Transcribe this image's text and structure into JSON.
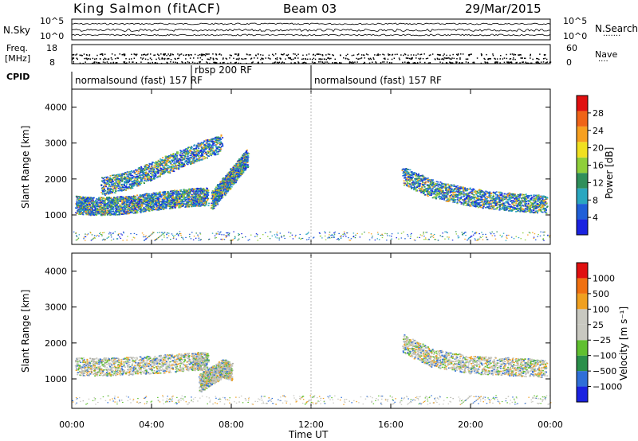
{
  "header": {
    "station": "King Salmon (fitACF)",
    "beam": "Beam 03",
    "date": "29/Mar/2015"
  },
  "noise_panel": {
    "left_label": "N.Sky",
    "right_label": "N.Search",
    "right_marker": "·······",
    "left_ticks": [
      "10^5",
      "10^0"
    ],
    "right_ticks": [
      "10^5",
      "10^0"
    ]
  },
  "freq_panel": {
    "left_label_1": "Freq.",
    "left_label_2": "[MHz]",
    "right_label": "Nave",
    "right_marker": "····",
    "left_ticks": [
      "18",
      "8"
    ],
    "right_ticks": [
      "60",
      "0"
    ]
  },
  "cpid": {
    "label": "CPID",
    "segments": [
      {
        "text": "normalsound (fast) 157 RF",
        "start_hour": 0.0
      },
      {
        "text": "rbsp 200 RF",
        "start_hour": 6.0
      },
      {
        "text": "normalsound (fast) 157 RF",
        "start_hour": 12.0
      }
    ]
  },
  "time_axis": {
    "label": "Time UT",
    "tick_labels": [
      "00:00",
      "04:00",
      "08:00",
      "12:00",
      "16:00",
      "20:00",
      "00:00"
    ],
    "tick_hours": [
      0,
      4,
      8,
      12,
      16,
      20,
      24
    ]
  },
  "chart_data": [
    {
      "type": "heatmap",
      "quantity": "Power",
      "ylabel": "Slant Range [km]",
      "colorbar_label": "Power [dB]",
      "xlim_hours": [
        0,
        24
      ],
      "ylim": [
        180,
        4500
      ],
      "yticks": [
        1000,
        2000,
        3000,
        4000
      ],
      "colorbar_ticks": [
        "4",
        "8",
        "12",
        "16",
        "20",
        "24",
        "28"
      ],
      "colorbar_colors": [
        "#1a22e0",
        "#1f5fd8",
        "#2aa7c0",
        "#2f8f5a",
        "#8fcf3a",
        "#f0e020",
        "#f7a020",
        "#ef6418",
        "#e01010"
      ],
      "echo_bands": [
        {
          "x": [
            0.2,
            1,
            2,
            3,
            4,
            5,
            6,
            6.8
          ],
          "y": [
            1290,
            1250,
            1260,
            1300,
            1380,
            1450,
            1500,
            1520
          ],
          "level": 3
        },
        {
          "x": [
            1.5,
            3,
            4.5,
            6,
            7.5
          ],
          "y": [
            1800,
            2000,
            2350,
            2700,
            3000
          ],
          "level": 1
        },
        {
          "x": [
            7,
            7.6,
            8.2,
            8.8
          ],
          "y": [
            1400,
            1800,
            2200,
            2600
          ],
          "level": 2
        },
        {
          "x": [
            16.6,
            18,
            19.5,
            21,
            22.5,
            23.8
          ],
          "y": [
            2100,
            1750,
            1550,
            1420,
            1350,
            1300
          ],
          "level": 2
        }
      ]
    },
    {
      "type": "heatmap",
      "quantity": "Velocity",
      "ylabel": "Slant Range [km]",
      "colorbar_label": "Velocity [m s⁻¹]",
      "xlim_hours": [
        0,
        24
      ],
      "ylim": [
        180,
        4500
      ],
      "yticks": [
        1000,
        2000,
        3000,
        4000
      ],
      "colorbar_ticks": [
        "1000",
        "500",
        "100",
        "25",
        "−25",
        "−100",
        "−500",
        "−1000"
      ],
      "colorbar_colors": [
        "#1a22e0",
        "#2f6fd8",
        "#2a8f4a",
        "#60c030",
        "#c8c8c0",
        "#c8c8c0",
        "#f0a020",
        "#f07010",
        "#e01010"
      ],
      "echo_bands": [
        {
          "x": [
            0.2,
            2,
            4,
            6,
            6.8
          ],
          "y": [
            1350,
            1350,
            1400,
            1500,
            1500
          ],
          "level": "ground"
        },
        {
          "x": [
            6.4,
            7,
            7.6,
            8.0
          ],
          "y": [
            900,
            1100,
            1300,
            1200
          ],
          "level": "negative"
        },
        {
          "x": [
            16.6,
            18,
            20,
            22,
            23.8
          ],
          "y": [
            2000,
            1600,
            1400,
            1350,
            1300
          ],
          "level": "ground"
        }
      ]
    }
  ]
}
